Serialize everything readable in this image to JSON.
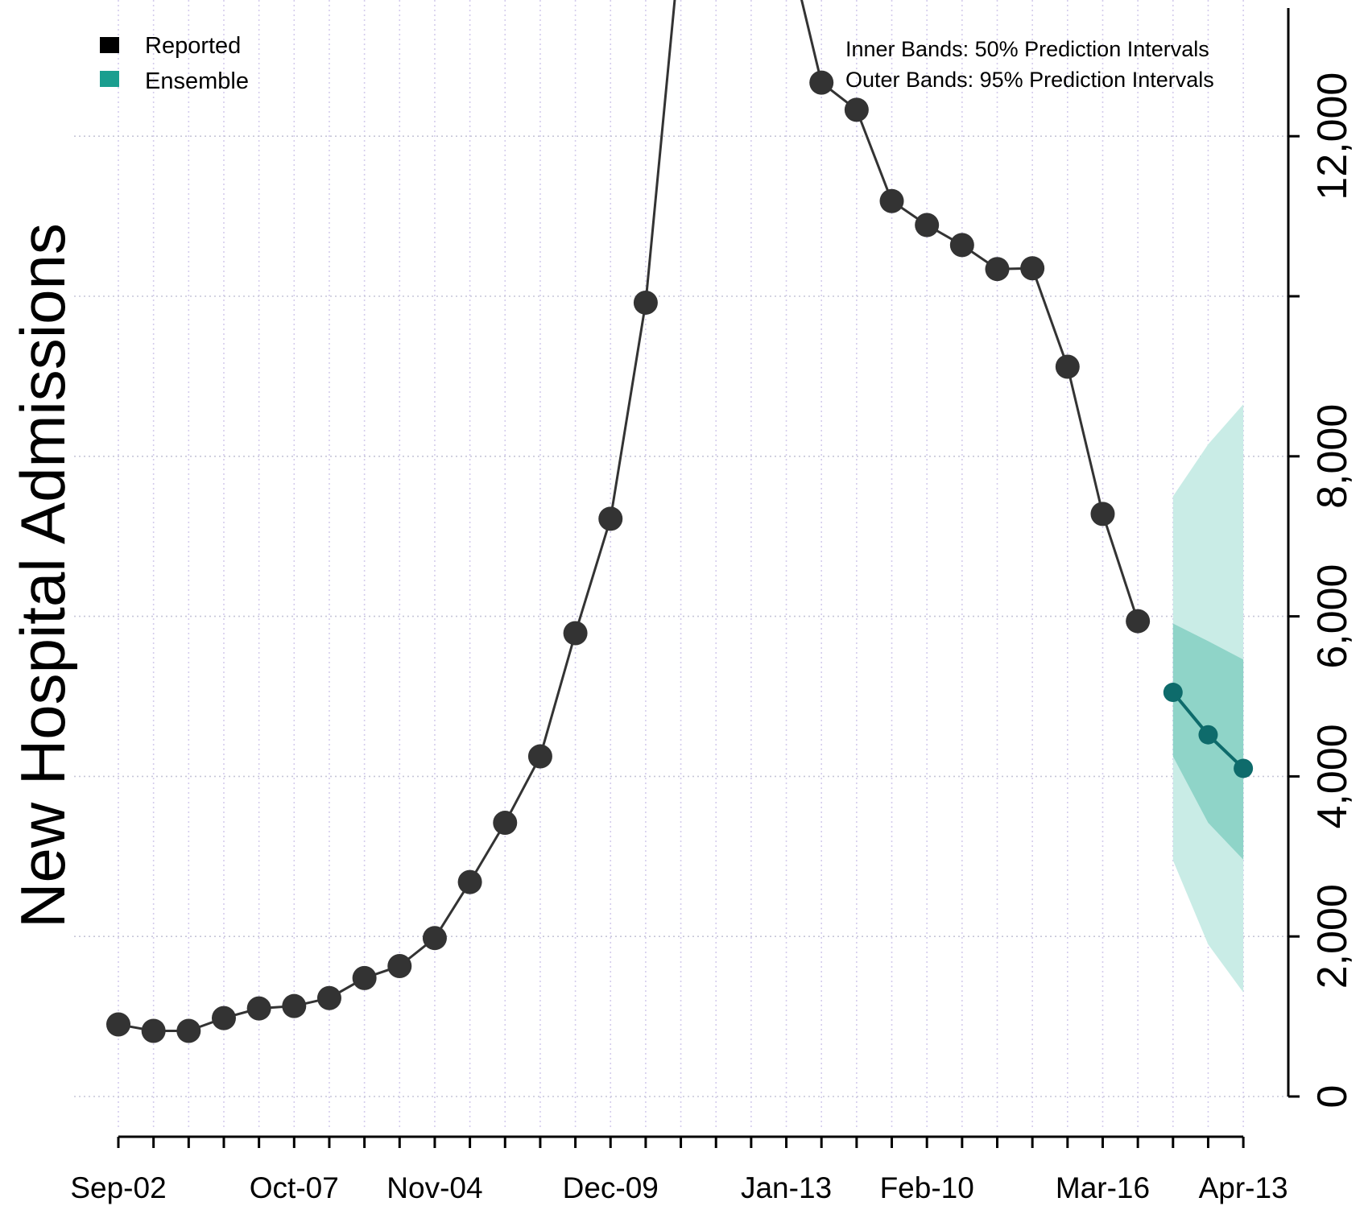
{
  "chart_data": {
    "type": "line",
    "title": "",
    "xlabel": "",
    "ylabel": "New Hospital Admissions",
    "ylim": [
      0,
      13500
    ],
    "y_ticks": [
      0,
      2000,
      4000,
      6000,
      8000,
      12000
    ],
    "y_tick_labels": [
      "0",
      "2,000",
      "4,000",
      "6,000",
      "8,000",
      "12,000"
    ],
    "x_ticks": [
      {
        "label": "Sep-02",
        "index": 0
      },
      {
        "label": "Oct-07",
        "index": 5
      },
      {
        "label": "Nov-04",
        "index": 9
      },
      {
        "label": "Dec-09",
        "index": 14
      },
      {
        "label": "Jan-13",
        "index": 19
      },
      {
        "label": "Feb-10",
        "index": 23
      },
      {
        "label": "Mar-16",
        "index": 28
      },
      {
        "label": "Apr-13",
        "index": 32
      }
    ],
    "x_weeks": 33,
    "grid": true,
    "legend_position": "top-left",
    "legend": [
      {
        "name": "Reported",
        "color": "#000000"
      },
      {
        "name": "Ensemble",
        "color": "#1a9e8f"
      }
    ],
    "annotation_lines": [
      "Inner Bands: 50% Prediction Intervals",
      "Outer Bands: 95% Prediction Intervals"
    ],
    "series": [
      {
        "name": "Reported",
        "color": "#333333",
        "points": [
          {
            "i": 0,
            "y": 900
          },
          {
            "i": 1,
            "y": 820
          },
          {
            "i": 2,
            "y": 820
          },
          {
            "i": 3,
            "y": 980
          },
          {
            "i": 4,
            "y": 1100
          },
          {
            "i": 5,
            "y": 1130
          },
          {
            "i": 6,
            "y": 1230
          },
          {
            "i": 7,
            "y": 1480
          },
          {
            "i": 8,
            "y": 1630
          },
          {
            "i": 9,
            "y": 1980
          },
          {
            "i": 10,
            "y": 2680
          },
          {
            "i": 11,
            "y": 3420
          },
          {
            "i": 12,
            "y": 4250
          },
          {
            "i": 13,
            "y": 5790
          },
          {
            "i": 14,
            "y": 7220
          },
          {
            "i": 15,
            "y": 9920
          },
          {
            "i": 20,
            "y": 12670
          },
          {
            "i": 21,
            "y": 12330
          },
          {
            "i": 22,
            "y": 11190
          },
          {
            "i": 23,
            "y": 10890
          },
          {
            "i": 24,
            "y": 10640
          },
          {
            "i": 25,
            "y": 10340
          },
          {
            "i": 26,
            "y": 10350
          },
          {
            "i": 27,
            "y": 9120
          },
          {
            "i": 28,
            "y": 7280
          },
          {
            "i": 29,
            "y": 5940
          }
        ],
        "offscreen_peak_points": [
          {
            "i": 16,
            "y": 14500
          },
          {
            "i": 19,
            "y": 14500
          }
        ]
      },
      {
        "name": "Ensemble",
        "color": "#0e6b6b",
        "points": [
          {
            "i": 30,
            "y": 5050
          },
          {
            "i": 31,
            "y": 4520
          },
          {
            "i": 32,
            "y": 4100
          }
        ],
        "interval_50": {
          "lower": [
            4250,
            3420,
            2960
          ],
          "upper": [
            5910,
            5690,
            5460
          ]
        },
        "interval_95": {
          "lower": [
            2950,
            1900,
            1300
          ],
          "upper": [
            7500,
            8150,
            8650
          ]
        }
      }
    ]
  }
}
